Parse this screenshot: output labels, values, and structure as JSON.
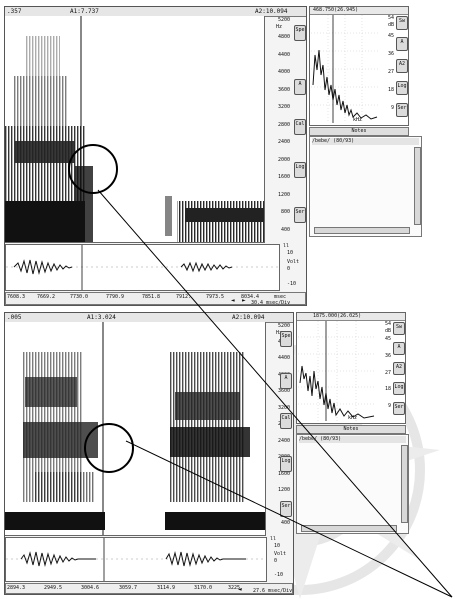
{
  "top": {
    "title": {
      "left": ".357",
      "mid": "A1:7.737",
      "right": "A2:10.094"
    },
    "freq_unit": "Hz",
    "freq_ticks": [
      "5200",
      "4800",
      "4400",
      "4000",
      "3600",
      "3200",
      "2800",
      "2400",
      "2000",
      "1600",
      "1200",
      "800",
      "400"
    ],
    "buttons": [
      "Spe",
      "A",
      "Cal",
      "Log",
      "Ser"
    ],
    "wave": {
      "amp_top": "10",
      "amp_mid": "0",
      "amp_bottom": "-10",
      "unit": "Volt",
      "corner": "ll"
    },
    "time_ticks": [
      "7608.3",
      "7669.2",
      "7730.0",
      "7790.9",
      "7851.8",
      "7912.",
      "7973.5",
      "8034.4",
      "msec"
    ],
    "time_scale": "30.4 msec/Div",
    "side": {
      "title": "468.750(26.945)",
      "db_unit": "dB",
      "db_ticks": [
        "54",
        "45",
        "36",
        "27",
        "18",
        "9"
      ],
      "kHz": "kHz",
      "buttons": [
        "Sw",
        "A",
        "A2",
        "Log",
        "Ser"
      ],
      "notes_label": "Notes",
      "pane_text": "/bebe/ (80/93)"
    }
  },
  "bottom": {
    "title": {
      "left": ".005",
      "mid": "A1:3.024",
      "right": "A2:10.094"
    },
    "freq_unit": "Hz",
    "freq_ticks": [
      "5200",
      "4800",
      "4400",
      "4000",
      "3600",
      "3200",
      "2800",
      "2400",
      "2000",
      "1600",
      "1200",
      "800",
      "400"
    ],
    "buttons": [
      "Spe",
      "A",
      "Cal",
      "Log",
      "Ser"
    ],
    "wave": {
      "amp_top": "10",
      "amp_mid": "0",
      "amp_bottom": "-10",
      "unit": "Volt",
      "corner": "ll"
    },
    "time_ticks": [
      "2894.3",
      "2949.5",
      "3004.6",
      "3059.7",
      "3114.9",
      "3170.0",
      "3225."
    ],
    "time_scale": "27.6 msec/Div",
    "side": {
      "title": "1875.000(26.025)",
      "db_unit": "dB",
      "db_ticks": [
        "54",
        "45",
        "36",
        "27",
        "18",
        "9"
      ],
      "kHz": "kHz",
      "buttons": [
        "Sw",
        "A",
        "A2",
        "Log",
        "Ser"
      ],
      "notes_label": "Notes",
      "pane_text": "/bebe/ (80/93)"
    }
  },
  "colors": {
    "ink": "#111111",
    "panel": "#f4f4f4",
    "button": "#dcdcdc",
    "watermark": "#e2e2e2"
  }
}
